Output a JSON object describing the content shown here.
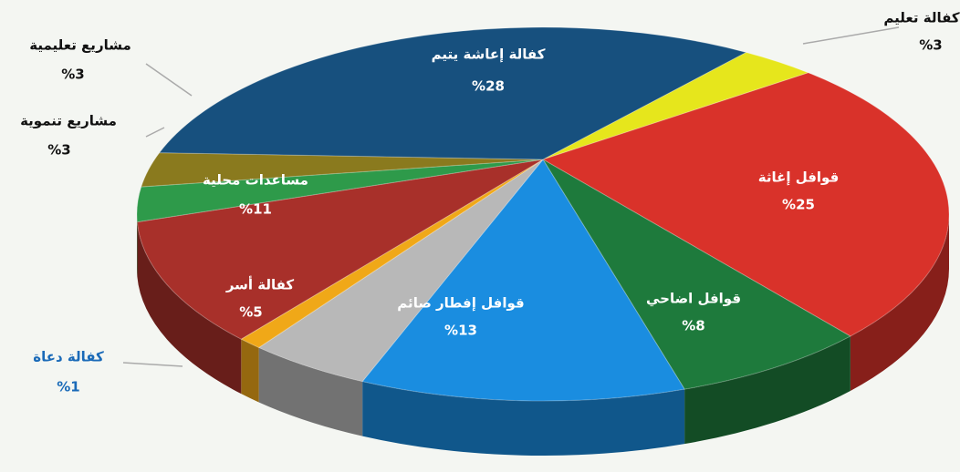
{
  "chart_data": {
    "type": "pie",
    "categories": [
      "كفالة تعليم",
      "قوافل إغاثة",
      "قوافل اضاحي",
      "قوافل إفطار صائم",
      "كفالة أسر",
      "كفالة دعاة",
      "مساعدات محلية",
      "مشاريع تنموية",
      "مشاريع تعليمية",
      "كفالة إعاشة يتيم"
    ],
    "values": [
      3,
      25,
      8,
      13,
      5,
      1,
      11,
      3,
      3,
      28
    ],
    "value_labels": [
      "%3",
      "%25",
      "%8",
      "%13",
      "%5",
      "%1",
      "%11",
      "%3",
      "%3",
      "%28"
    ],
    "colors": [
      "#e6e61c",
      "#d9322a",
      "#1e7a3c",
      "#1a8de0",
      "#b8b8b8",
      "#f0a818",
      "#a8302a",
      "#2e9a4a",
      "#8a7a1e",
      "#17507e"
    ]
  }
}
